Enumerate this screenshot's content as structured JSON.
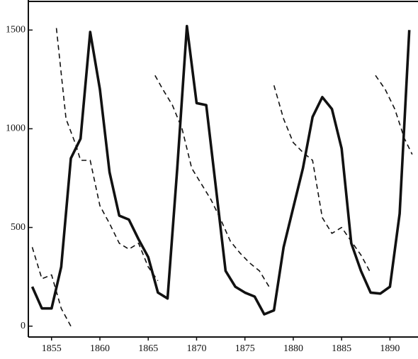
{
  "chart_data": {
    "type": "line",
    "xlim": [
      1852.6,
      1892.9
    ],
    "xticks": [
      1855,
      1860,
      1865,
      1870,
      1875,
      1880,
      1885,
      1890
    ],
    "ylim": [
      -55,
      1645
    ],
    "yticks": [
      0,
      500,
      1000,
      1500
    ],
    "grid": false,
    "series": [
      {
        "color": "#111111",
        "style": "solid",
        "x": [
          1853,
          1854,
          1855,
          1856,
          1857,
          1858,
          1859,
          1860,
          1861,
          1862,
          1863,
          1864,
          1865,
          1866,
          1867,
          1868,
          1869,
          1870,
          1871,
          1872,
          1873,
          1874,
          1875,
          1876,
          1877,
          1878,
          1879,
          1880,
          1881,
          1882,
          1883,
          1884,
          1885,
          1886,
          1887,
          1888,
          1889,
          1890,
          1891,
          1892
        ],
        "values": [
          200,
          90,
          90,
          300,
          850,
          950,
          1490,
          1200,
          780,
          560,
          540,
          440,
          350,
          170,
          140,
          800,
          1520,
          1130,
          1120,
          700,
          280,
          200,
          170,
          150,
          60,
          80,
          400,
          600,
          800,
          1060,
          1160,
          1100,
          900,
          420,
          280,
          170,
          165,
          200,
          570,
          1500
        ]
      },
      {
        "color": "#111111",
        "style": "dashed",
        "x": [
          1853,
          1854,
          1855,
          1856,
          1857
        ],
        "values": [
          400,
          240,
          260,
          90,
          0
        ]
      },
      {
        "color": "#111111",
        "style": "dashed",
        "x": [
          1855.5,
          1856.5,
          1857.5,
          1858,
          1859,
          1860,
          1861,
          1862,
          1863,
          1864,
          1865,
          1866
        ],
        "values": [
          1510,
          1050,
          920,
          840,
          840,
          610,
          520,
          420,
          390,
          420,
          300,
          230
        ]
      },
      {
        "color": "#111111",
        "style": "dashed",
        "x": [
          1865.7,
          1866.5,
          1867.5,
          1868.5,
          1869.5,
          1870.5,
          1871.5,
          1872.5,
          1873.5,
          1874.5,
          1875.5,
          1876.5,
          1877.5
        ],
        "values": [
          1270,
          1200,
          1120,
          1000,
          800,
          720,
          640,
          540,
          430,
          370,
          320,
          280,
          200
        ]
      },
      {
        "color": "#111111",
        "style": "dashed",
        "x": [
          1878,
          1879,
          1880,
          1881,
          1882,
          1883,
          1884,
          1885,
          1886,
          1887,
          1888
        ],
        "values": [
          1220,
          1050,
          930,
          880,
          840,
          550,
          470,
          500,
          430,
          360,
          270
        ]
      },
      {
        "color": "#111111",
        "style": "dashed",
        "x": [
          1888.5,
          1889.5,
          1890.5,
          1891.5,
          1892.3
        ],
        "values": [
          1270,
          1200,
          1100,
          950,
          870
        ]
      }
    ]
  }
}
